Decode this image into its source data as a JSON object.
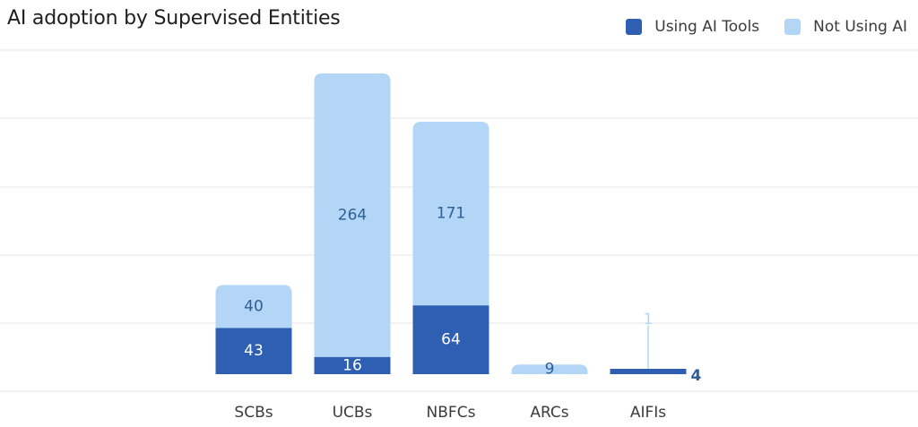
{
  "colors": {
    "using": "#2f5fb3",
    "not_using": "#b3d6f7",
    "grid": "#e6e6e6",
    "label_dark": "#ffffff",
    "label_light": "#2c5f96"
  },
  "legend": {
    "using_label": "Using AI Tools",
    "not_using_label": "Not Using AI"
  },
  "chart_data": {
    "type": "bar",
    "stacked": true,
    "title": "AI adoption by Supervised Entities",
    "categories": [
      "SCBs",
      "UCBs",
      "NBFCs",
      "ARCs",
      "AIFIs"
    ],
    "series": [
      {
        "name": "Using AI Tools",
        "values": [
          43,
          16,
          64,
          0,
          4
        ]
      },
      {
        "name": "Not Using AI",
        "values": [
          40,
          264,
          171,
          9,
          1
        ]
      }
    ],
    "legend_position": "top-right",
    "grid": true
  }
}
